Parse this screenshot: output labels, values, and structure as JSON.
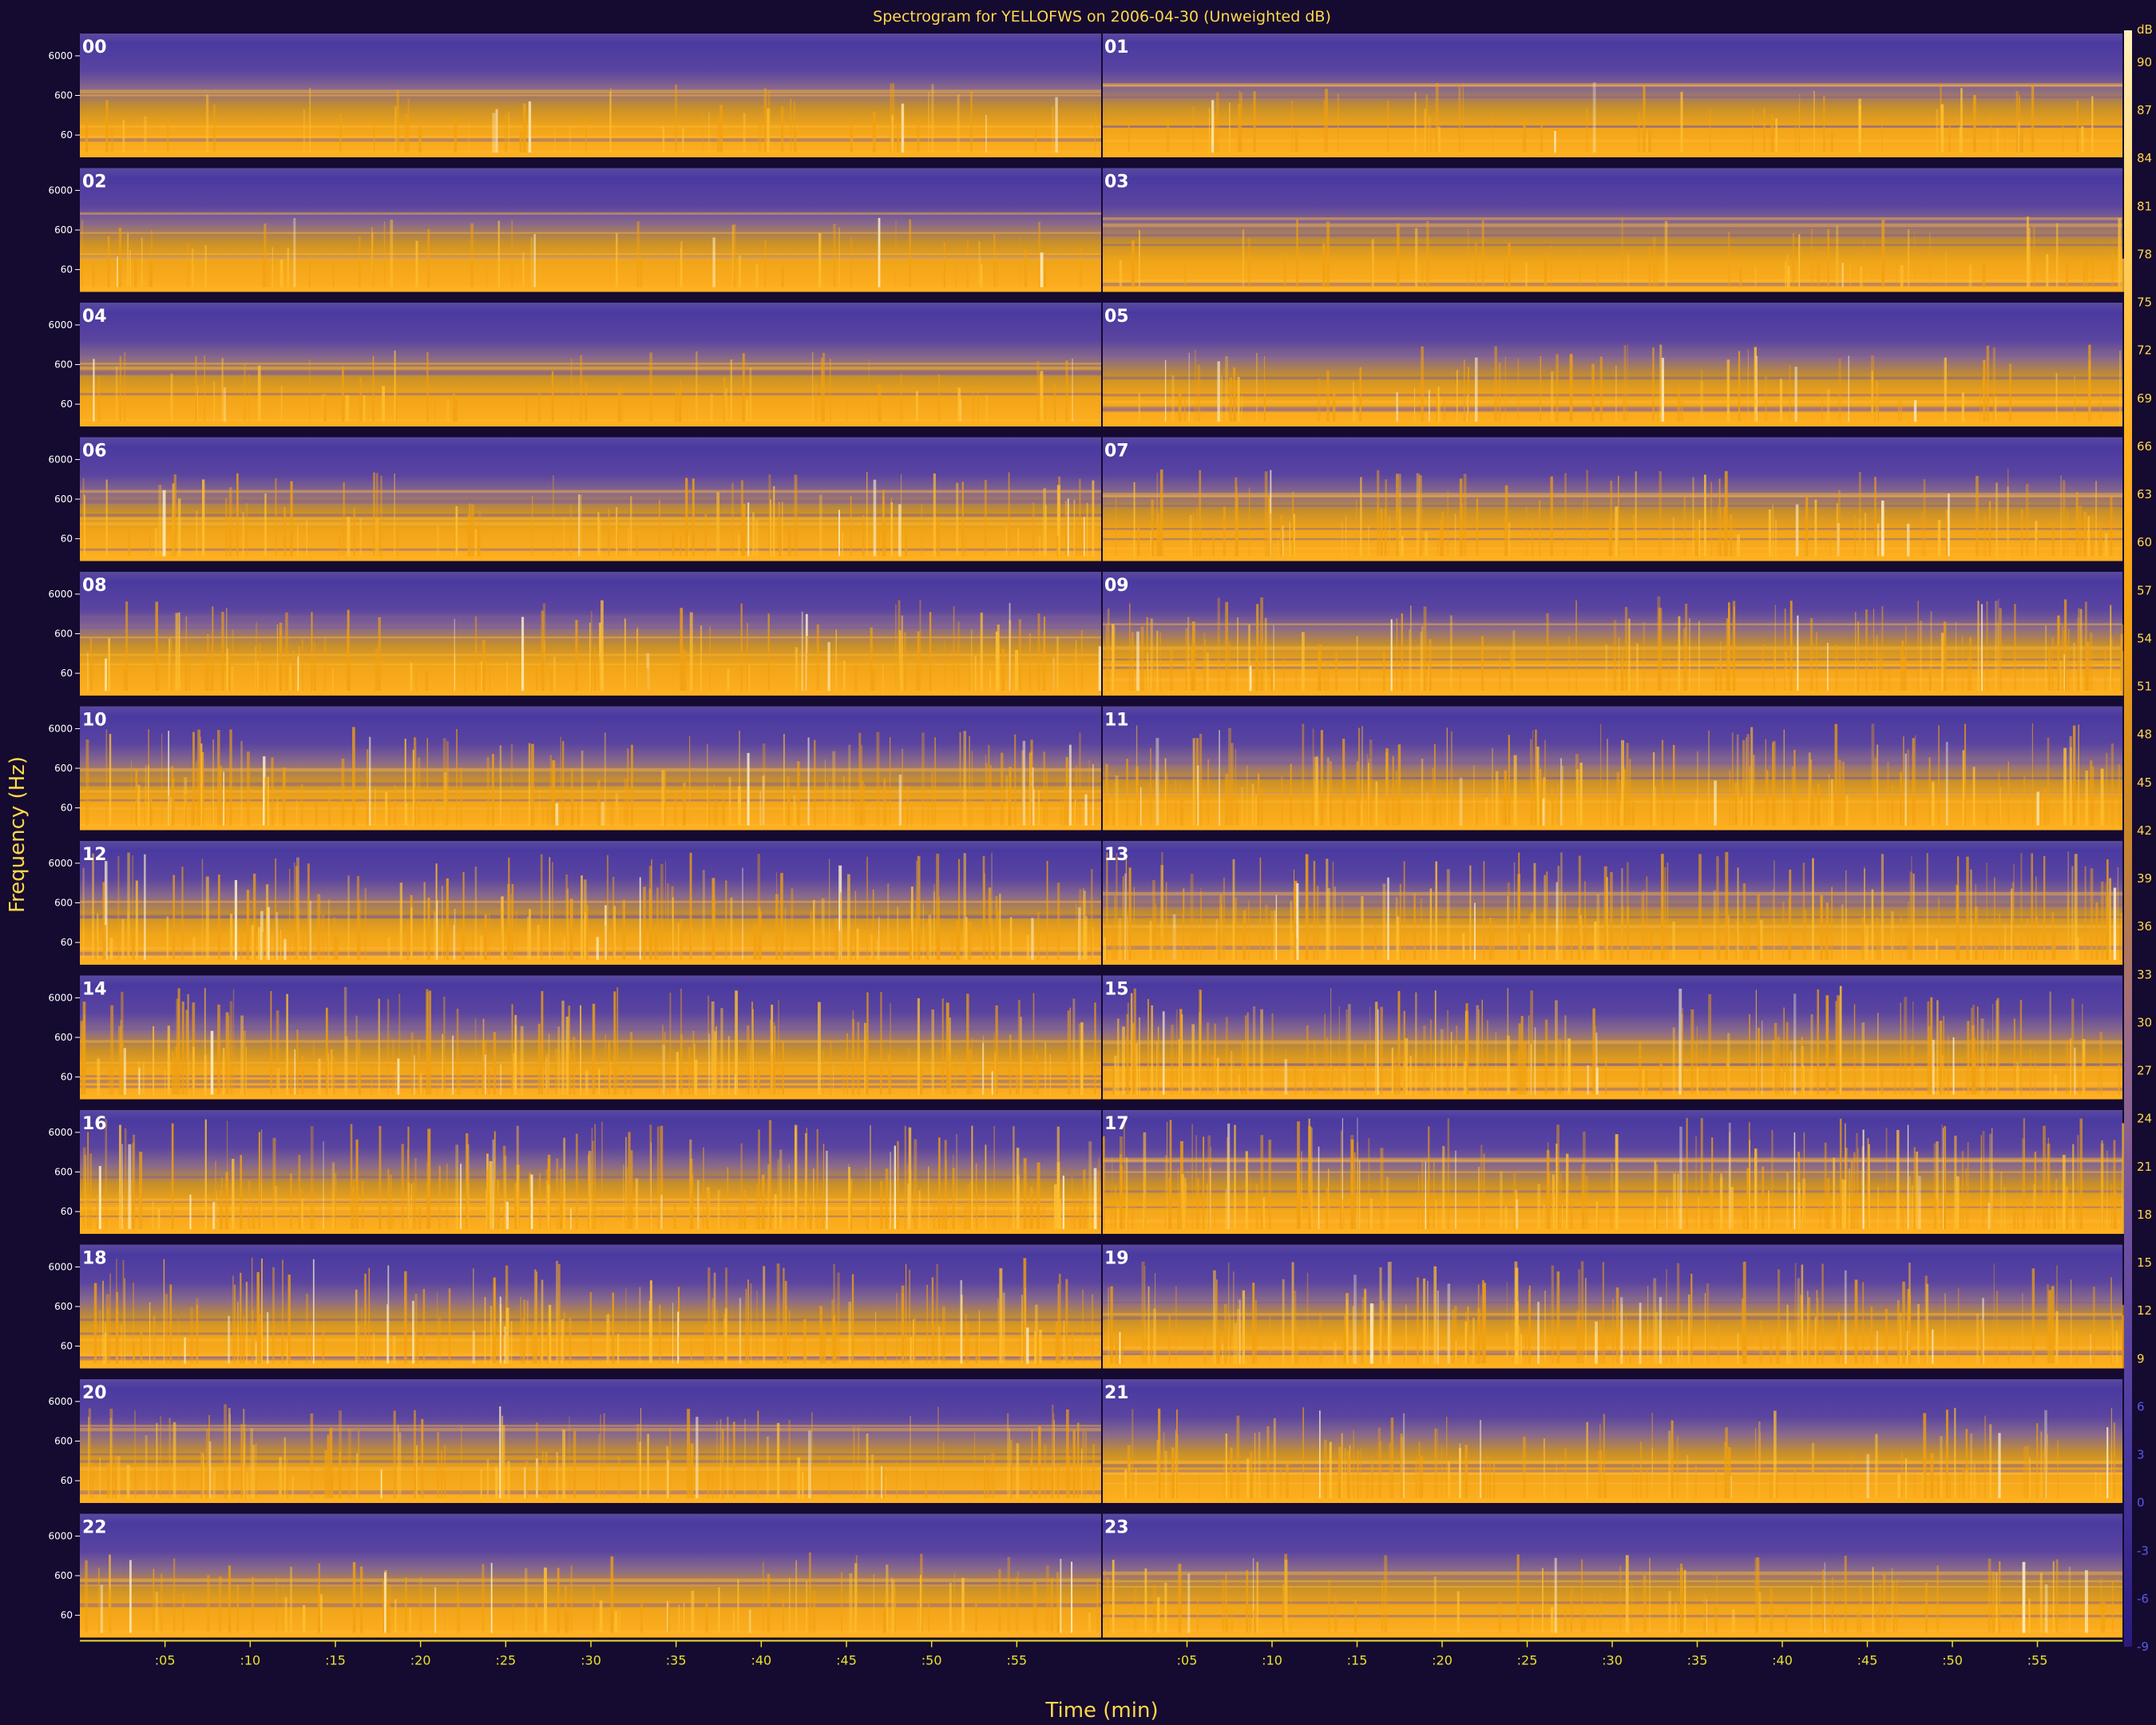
{
  "chart_data": {
    "type": "heatmap",
    "title": "Spectrogram for YELLOFWS on 2006-04-30 (Unweighted dB)",
    "xlabel": "Time (min)",
    "ylabel": "Frequency (Hz)",
    "layout": "24 hourly strips arranged as 12 rows × 2 columns",
    "hours": [
      "00",
      "01",
      "02",
      "03",
      "04",
      "05",
      "06",
      "07",
      "08",
      "09",
      "10",
      "11",
      "12",
      "13",
      "14",
      "15",
      "16",
      "17",
      "18",
      "19",
      "20",
      "21",
      "22",
      "23"
    ],
    "x_tick_labels": [
      ":05",
      ":10",
      ":15",
      ":20",
      ":25",
      ":30",
      ":35",
      ":40",
      ":45",
      ":50",
      ":55"
    ],
    "y_tick_labels": [
      "6000",
      "600",
      "60"
    ],
    "colorbar": {
      "unit": "dB",
      "tick_labels": [
        "90",
        "87",
        "84",
        "81",
        "78",
        "75",
        "72",
        "69",
        "66",
        "63",
        "60",
        "57",
        "54",
        "51",
        "48",
        "45",
        "42",
        "39",
        "36",
        "33",
        "30",
        "27",
        "24",
        "21",
        "18",
        "15",
        "12",
        "9",
        "6",
        "3",
        "0",
        "-3",
        "-6",
        "-9"
      ],
      "colors": [
        "#2a1a80",
        "#4b3aa0",
        "#6d4fa0",
        "#9a6a8a",
        "#c8862c",
        "#f0a010",
        "#ffb020",
        "#ffd060",
        "#fff0c0"
      ]
    },
    "activity_by_hour": [
      0.18,
      0.2,
      0.2,
      0.2,
      0.22,
      0.3,
      0.42,
      0.45,
      0.5,
      0.55,
      0.62,
      0.68,
      0.74,
      0.76,
      0.74,
      0.76,
      0.78,
      0.8,
      0.72,
      0.68,
      0.55,
      0.5,
      0.35,
      0.32
    ],
    "colors": {
      "background": "#150a30",
      "title_text": "#ffd84a",
      "axis_text": "#e8e02a",
      "hour_text": "#ffffff"
    }
  }
}
